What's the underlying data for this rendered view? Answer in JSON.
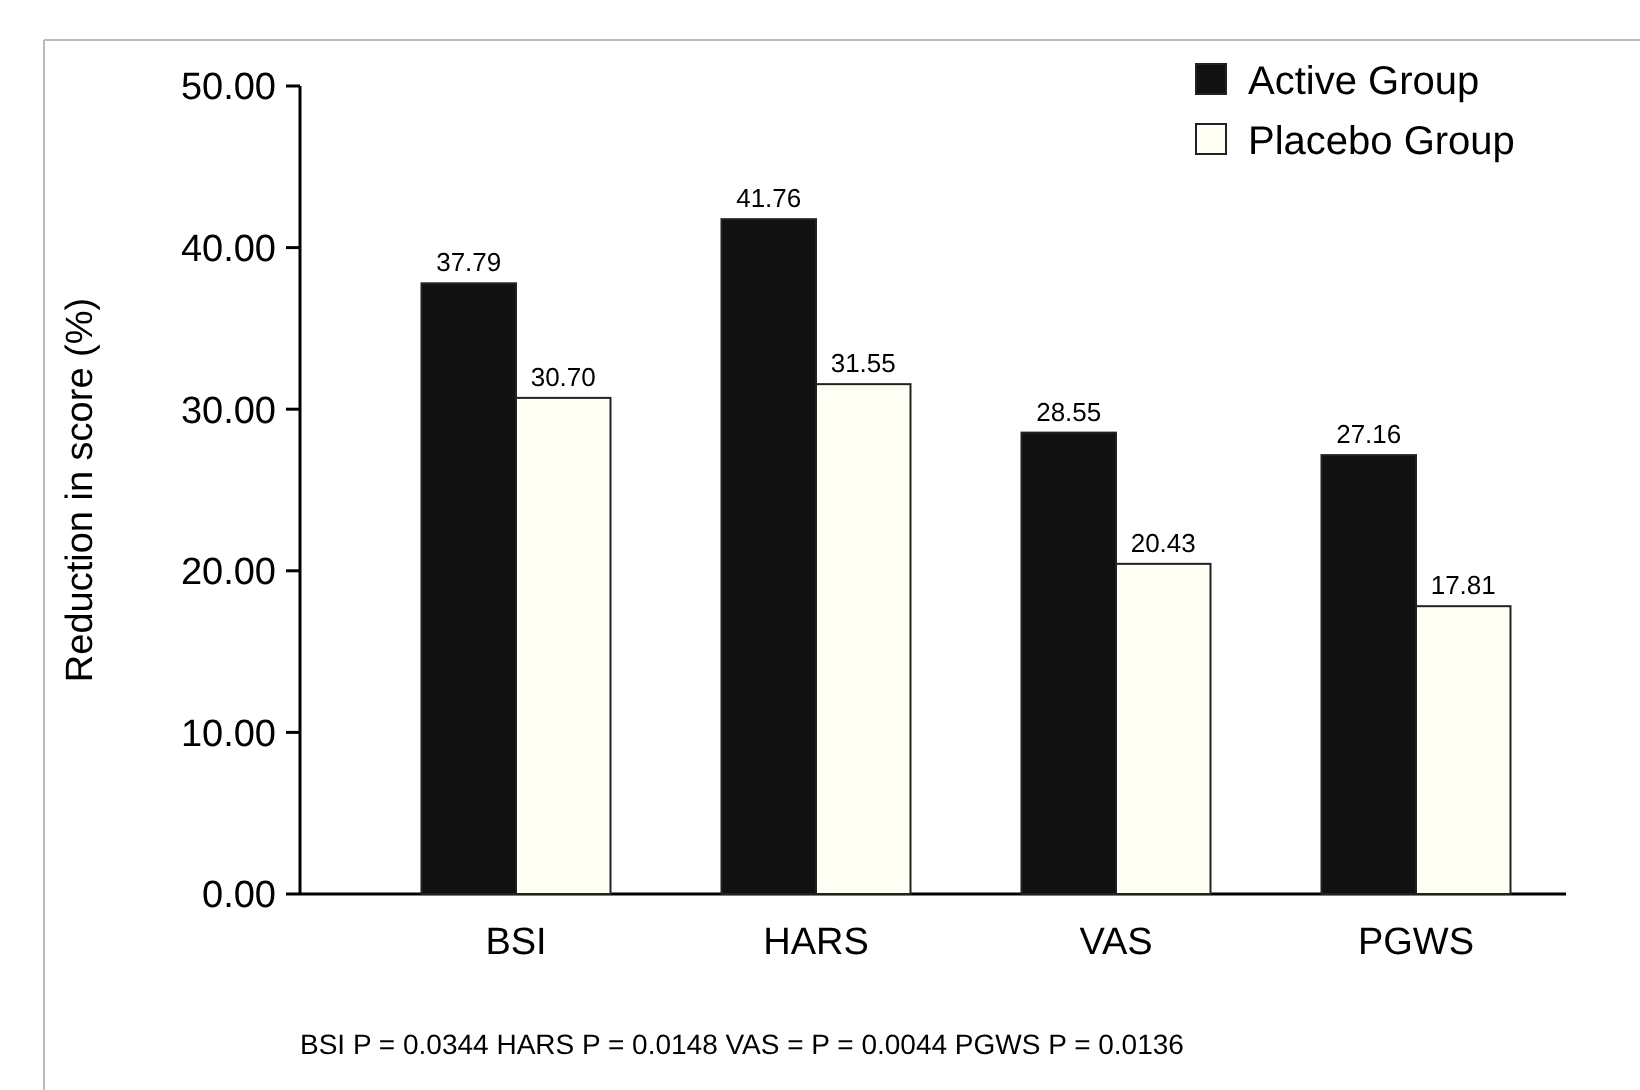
{
  "chart_data": {
    "type": "bar",
    "ylabel": "Reduction in score (%)",
    "categories": [
      "BSI",
      "HARS",
      "VAS",
      "PGWS"
    ],
    "series": [
      {
        "name": "Active Group",
        "color": "#111111",
        "values": [
          37.79,
          41.76,
          28.55,
          27.16
        ],
        "value_labels": [
          "37.79",
          "41.76",
          "28.55",
          "27.16"
        ]
      },
      {
        "name": "Placebo Group",
        "color": "#fffff4",
        "values": [
          30.7,
          31.55,
          20.43,
          17.81
        ],
        "value_labels": [
          "30.70",
          "31.55",
          "20.43",
          "17.81"
        ]
      }
    ],
    "ylim": [
      0,
      50
    ],
    "yticks": [
      {
        "value": 0,
        "label": "0.00"
      },
      {
        "value": 10,
        "label": "10.00"
      },
      {
        "value": 20,
        "label": "20.00"
      },
      {
        "value": 30,
        "label": "30.00"
      },
      {
        "value": 40,
        "label": "40.00"
      },
      {
        "value": 50,
        "label": "50.00"
      }
    ],
    "legend": "top right",
    "grid": false,
    "annotations": [
      "BSI P = 0.0344   HARS P = 0.0148   VAS = P = 0.0044   PGWS P = 0.0136"
    ]
  }
}
